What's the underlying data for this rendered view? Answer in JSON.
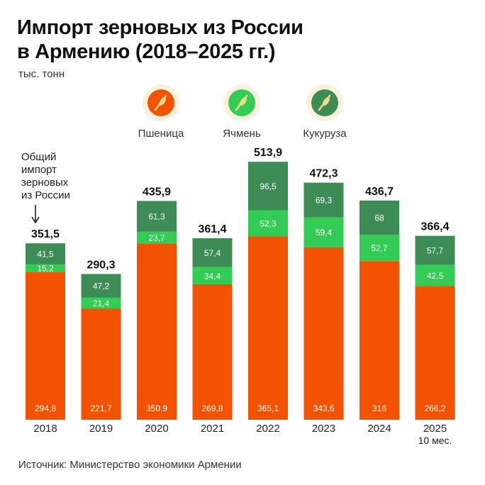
{
  "title_line1": "Импорт зерновых из России",
  "title_line2": "в Армению (2018–2025 гг.)",
  "unit": "тыс. тонн",
  "annotation": [
    "Общий",
    "импорт",
    "зерновых",
    "из России"
  ],
  "source": "Источник: Министерство экономики Армении",
  "colors": {
    "wheat": "#F35200",
    "barley": "#33CC55",
    "corn": "#3E8C55"
  },
  "chart_data": {
    "type": "bar",
    "stacked": true,
    "categories": [
      "2018",
      "2019",
      "2020",
      "2021",
      "2022",
      "2023",
      "2024",
      "2025"
    ],
    "category_sublabels": [
      "",
      "",
      "",
      "",
      "",
      "",
      "",
      "10 мес."
    ],
    "series": [
      {
        "name": "Пшеница",
        "icon": "wheat-icon",
        "values": [
          "294,8",
          "221,7",
          "350,9",
          "269,8",
          "365,1",
          "343,6",
          "316",
          "266,2"
        ]
      },
      {
        "name": "Ячмень",
        "icon": "barley-icon",
        "values": [
          "15,2",
          "21,4",
          "23,7",
          "34,4",
          "52,3",
          "59,4",
          "52,7",
          "42,5"
        ]
      },
      {
        "name": "Кукуруза",
        "icon": "corn-icon",
        "values": [
          "41,5",
          "47,2",
          "61,3",
          "57,4",
          "96,5",
          "69,3",
          "68",
          "57,7"
        ]
      }
    ],
    "totals": [
      "351,5",
      "290,3",
      "435,9",
      "361,4",
      "513,9",
      "472,3",
      "436,7",
      "366,4"
    ],
    "legend_position": "top",
    "grid": false
  }
}
